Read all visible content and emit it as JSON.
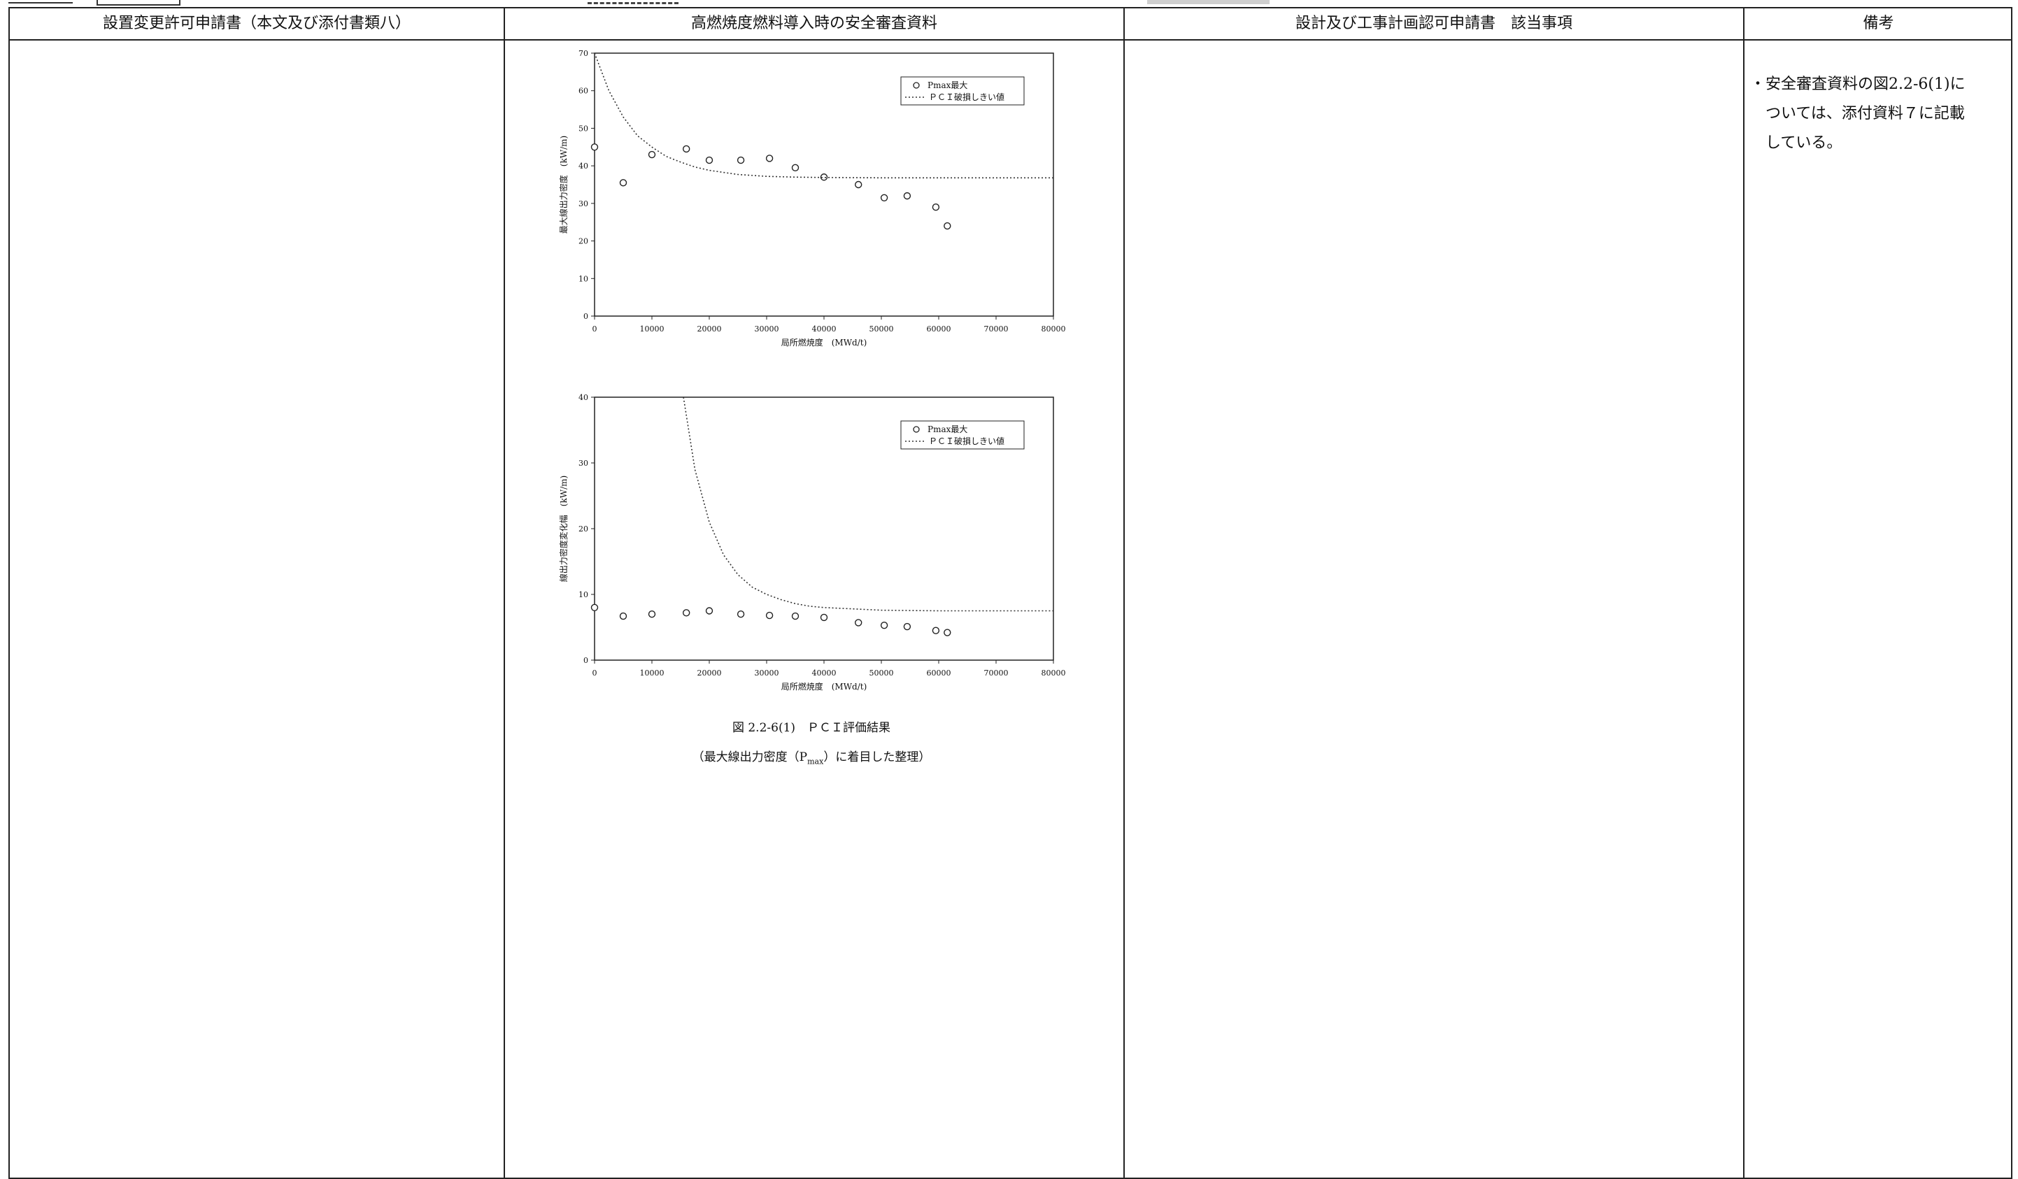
{
  "header": {
    "col1": "設置変更許可申請書（本文及び添付書類八）",
    "col2": "高燃焼度燃料導入時の安全審査資料",
    "col3": "設計及び工事計画認可申請書　該当事項",
    "col4": "備考"
  },
  "remark": {
    "line1": "・安全審査資料の図2.2-6(1)に",
    "line2": "ついては、添付資料７に記載",
    "line3": "している。"
  },
  "figure": {
    "caption_title": "図 2.2-6(1)　ＰＣＩ評価結果",
    "caption_sub_pre": "（最大線出力密度（P",
    "caption_sub_subscript": "max",
    "caption_sub_post": "）に着目した整理）"
  },
  "chart_data": [
    {
      "type": "scatter",
      "xlabel": "局所燃焼度　(MWd/t)",
      "ylabel": "最大線出力密度　(kW/m)",
      "xlim": [
        0,
        80000
      ],
      "ylim": [
        0,
        70
      ],
      "xticks": [
        0,
        10000,
        20000,
        30000,
        40000,
        50000,
        60000,
        70000,
        80000
      ],
      "yticks": [
        0,
        10,
        20,
        30,
        40,
        50,
        60,
        70
      ],
      "legend_position": "top-right",
      "series": [
        {
          "name": "Pmax最大",
          "marker": "circle",
          "x": [
            0,
            5000,
            10000,
            16000,
            20000,
            25500,
            30500,
            35000,
            40000,
            46000,
            50500,
            54500,
            59500,
            61500
          ],
          "y": [
            45,
            35.5,
            43,
            44.5,
            41.5,
            41.5,
            42,
            39.5,
            37,
            35,
            31.5,
            32,
            29,
            24
          ]
        },
        {
          "name": "ＰＣＩ破損しきい値",
          "style": "dotted",
          "x": [
            0,
            2500,
            5000,
            7500,
            10000,
            12500,
            15000,
            17500,
            20000,
            25000,
            30000,
            35000,
            40000,
            50000,
            60000,
            70000,
            80000
          ],
          "y": [
            70,
            60,
            53,
            48,
            45,
            42.5,
            41,
            39.7,
            38.8,
            37.7,
            37.2,
            37,
            36.9,
            36.8,
            36.8,
            36.8,
            36.8
          ]
        }
      ]
    },
    {
      "type": "scatter",
      "xlabel": "局所燃焼度　(MWd/t)",
      "ylabel": "線出力密度変化幅　(kW/m)",
      "xlim": [
        0,
        80000
      ],
      "ylim": [
        0,
        40
      ],
      "xticks": [
        0,
        10000,
        20000,
        30000,
        40000,
        50000,
        60000,
        70000,
        80000
      ],
      "yticks": [
        0,
        10,
        20,
        30,
        40
      ],
      "legend_position": "top-right",
      "series": [
        {
          "name": "Pmax最大",
          "marker": "circle",
          "x": [
            0,
            5000,
            10000,
            16000,
            20000,
            25500,
            30500,
            35000,
            40000,
            46000,
            50500,
            54500,
            59500,
            61500
          ],
          "y": [
            8,
            6.7,
            7,
            7.2,
            7.5,
            7,
            6.8,
            6.7,
            6.5,
            5.7,
            5.3,
            5.1,
            4.5,
            4.2
          ]
        },
        {
          "name": "ＰＣＩ破損しきい値",
          "style": "dotted",
          "x": [
            15500,
            17500,
            20000,
            22500,
            25000,
            27500,
            30000,
            32500,
            35000,
            37500,
            40000,
            45000,
            50000,
            60000,
            70000,
            80000
          ],
          "y": [
            40,
            29,
            21,
            16,
            13,
            11.1,
            10,
            9.2,
            8.6,
            8.2,
            8,
            7.8,
            7.6,
            7.5,
            7.5,
            7.5
          ]
        }
      ]
    }
  ]
}
